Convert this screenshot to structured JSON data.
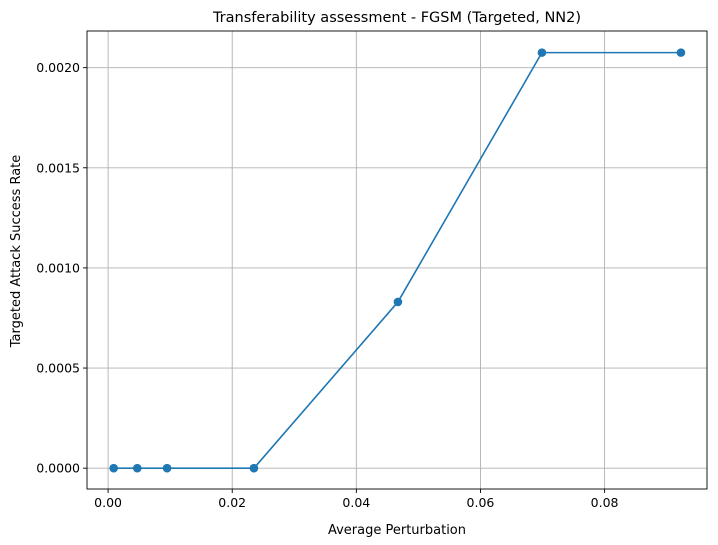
{
  "chart_data": {
    "type": "line",
    "title": "Transferability assessment - FGSM (Targeted, NN2)",
    "xlabel": "Average Perturbation",
    "ylabel": "Targeted Attack Success Rate",
    "xlim": [
      -0.0034,
      0.0965
    ],
    "ylim": [
      -0.000104,
      0.002183
    ],
    "xticks": [
      0.0,
      0.02,
      0.04,
      0.06,
      0.08
    ],
    "xtick_labels": [
      "0.00",
      "0.02",
      "0.04",
      "0.06",
      "0.08"
    ],
    "yticks": [
      0.0,
      0.0005,
      0.001,
      0.0015,
      0.002
    ],
    "ytick_labels": [
      "0.0000",
      "0.0005",
      "0.0010",
      "0.0015",
      "0.0020"
    ],
    "grid": true,
    "legend": false,
    "series": [
      {
        "color": "#1f77b4",
        "marker": "circle",
        "x": [
          0.0009,
          0.0047,
          0.0095,
          0.0235,
          0.0467,
          0.0699,
          0.0923
        ],
        "y": [
          0.0,
          0.0,
          0.0,
          0.0,
          0.00083,
          0.002075,
          0.002075
        ]
      }
    ]
  }
}
